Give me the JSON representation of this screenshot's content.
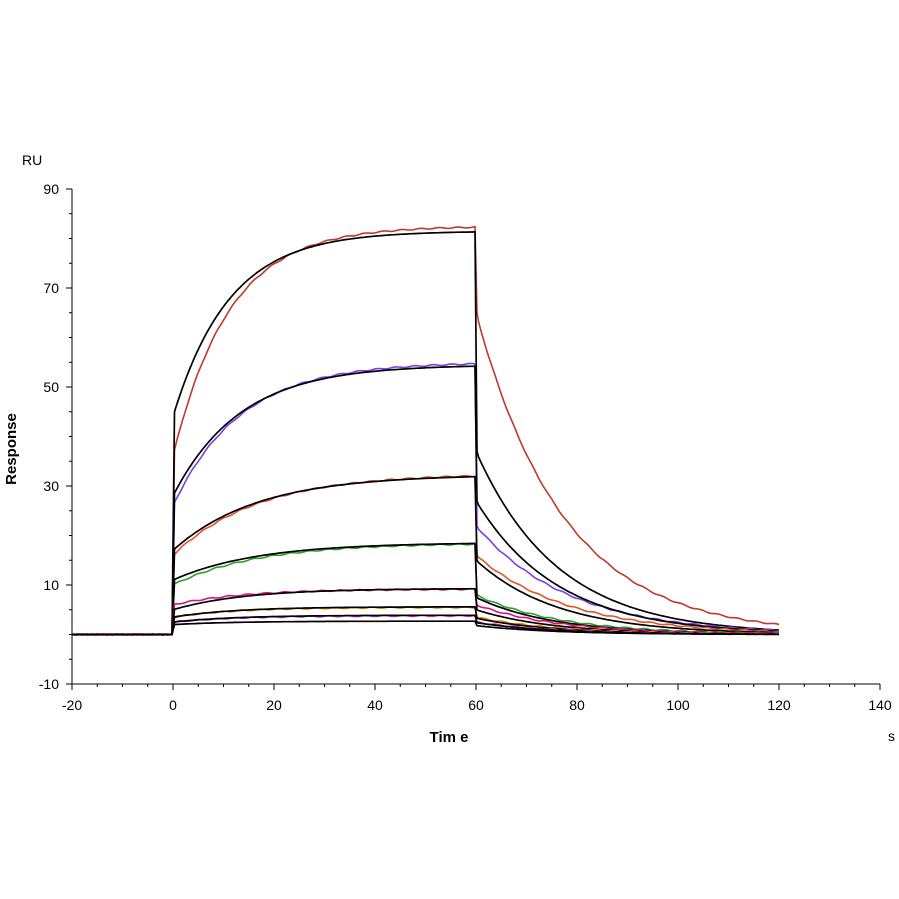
{
  "chart_data": {
    "type": "line",
    "title": "",
    "xlabel": "Tim e",
    "ylabel": "Response",
    "x_unit": "s",
    "y_unit": "RU",
    "xlim": [
      -20,
      140
    ],
    "ylim": [
      -10,
      90
    ],
    "x_ticks": [
      -20,
      0,
      20,
      40,
      60,
      80,
      100,
      120,
      140
    ],
    "y_ticks": [
      -10,
      10,
      30,
      50,
      70,
      90
    ],
    "grid": false,
    "legend": "none",
    "model": "1:1 binding, association 0–60 s, dissociation 60–120 s",
    "series": [
      {
        "name": "",
        "kind": "measured",
        "color": "#c0392b",
        "jump": 36,
        "plateau": 82.5,
        "kon_rate": 0.09,
        "end": 65,
        "koff_rate": 0.058
      },
      {
        "name": "",
        "kind": "fit",
        "color": "#000000",
        "jump": 44,
        "plateau": 81.5,
        "kon_rate": 0.09,
        "end": 37,
        "koff_rate": 0.062
      },
      {
        "name": "",
        "kind": "measured",
        "color": "#7b3fe4",
        "jump": 26,
        "plateau": 55,
        "kon_rate": 0.075,
        "end": 22,
        "koff_rate": 0.055
      },
      {
        "name": "",
        "kind": "fit",
        "color": "#000000",
        "jump": 28,
        "plateau": 54.5,
        "kon_rate": 0.075,
        "end": 27,
        "koff_rate": 0.062
      },
      {
        "name": "",
        "kind": "measured",
        "color": "#e0542a",
        "jump": 16,
        "plateau": 32.5,
        "kon_rate": 0.06,
        "end": 16,
        "koff_rate": 0.055
      },
      {
        "name": "",
        "kind": "fit",
        "color": "#000000",
        "jump": 17,
        "plateau": 32.3,
        "kon_rate": 0.06,
        "end": 15,
        "koff_rate": 0.062
      },
      {
        "name": "",
        "kind": "measured",
        "color": "#2ca02c",
        "jump": 10,
        "plateau": 18.5,
        "kon_rate": 0.06,
        "end": 8,
        "koff_rate": 0.06
      },
      {
        "name": "",
        "kind": "fit",
        "color": "#000000",
        "jump": 11,
        "plateau": 18.6,
        "kon_rate": 0.06,
        "end": 7.5,
        "koff_rate": 0.065
      },
      {
        "name": "",
        "kind": "measured",
        "color": "#d4147a",
        "jump": 6,
        "plateau": 9.2,
        "kon_rate": 0.07,
        "end": 6,
        "koff_rate": 0.06
      },
      {
        "name": "",
        "kind": "fit",
        "color": "#000000",
        "jump": 5,
        "plateau": 9.3,
        "kon_rate": 0.07,
        "end": 5,
        "koff_rate": 0.065
      },
      {
        "name": "",
        "kind": "measured",
        "color": "#e08a00",
        "jump": 3.5,
        "plateau": 5.5,
        "kon_rate": 0.08,
        "end": 3.5,
        "koff_rate": 0.06
      },
      {
        "name": "",
        "kind": "fit",
        "color": "#000000",
        "jump": 3.5,
        "plateau": 5.6,
        "kon_rate": 0.08,
        "end": 3.3,
        "koff_rate": 0.065
      },
      {
        "name": "",
        "kind": "measured",
        "color": "#d633d6",
        "jump": 2.5,
        "plateau": 3.8,
        "kon_rate": 0.08,
        "end": 2.5,
        "koff_rate": 0.06
      },
      {
        "name": "",
        "kind": "fit",
        "color": "#000000",
        "jump": 2.5,
        "plateau": 3.9,
        "kon_rate": 0.08,
        "end": 2.4,
        "koff_rate": 0.065
      },
      {
        "name": "",
        "kind": "fit",
        "color": "#000000",
        "jump": 2.0,
        "plateau": 2.7,
        "kon_rate": 0.08,
        "end": 1.8,
        "koff_rate": 0.065
      }
    ]
  }
}
